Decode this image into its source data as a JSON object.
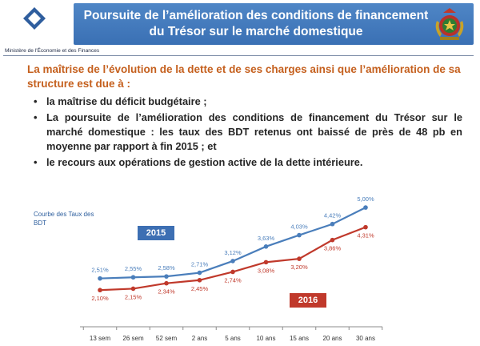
{
  "header": {
    "title_line1": "Poursuite de l’amélioration des conditions de financement",
    "title_line2": "du Trésor sur le marché domestique",
    "ministry": "Ministère de l'Économie et des Finances"
  },
  "intro": "La maîtrise de l’évolution de la dette et de ses charges ainsi que l’amélioration de sa structure est due à :",
  "bullets": [
    "la maîtrise du déficit budgétaire ;",
    "La poursuite de l’amélioration des conditions de financement du Trésor sur le marché domestique : les taux des BDT retenus ont baissé de près de 48 pb en moyenne par rapport à fin 2015 ; et",
    "le recours aux opérations de gestion active de la dette intérieure."
  ],
  "chart_data": {
    "type": "line",
    "title": "",
    "ylabel": "Courbe des Taux des BDT",
    "categories": [
      "13 sem",
      "26 sem",
      "52 sem",
      "2 ans",
      "5 ans",
      "10 ans",
      "15 ans",
      "20 ans",
      "30 ans"
    ],
    "series": [
      {
        "name": "2015",
        "color": "#4a7ebb",
        "values": [
          2.51,
          2.55,
          2.58,
          2.71,
          3.12,
          3.63,
          4.03,
          4.42,
          5.0
        ],
        "labels": [
          "2,51%",
          "2,55%",
          "2,58%",
          "2,71%",
          "3,12%",
          "3,63%",
          "4,03%",
          "4,42%",
          "5,00%"
        ]
      },
      {
        "name": "2016",
        "color": "#c0392b",
        "values": [
          2.1,
          2.15,
          2.34,
          2.45,
          2.74,
          3.08,
          3.2,
          3.86,
          4.31
        ],
        "labels": [
          "2,10%",
          "2,15%",
          "2,34%",
          "2,45%",
          "2,74%",
          "3,08%",
          "3,20%",
          "3,86%",
          "4,31%"
        ]
      }
    ],
    "ylim": [
      1.6,
      5.2
    ],
    "grid": false,
    "legend": "inline tags"
  }
}
